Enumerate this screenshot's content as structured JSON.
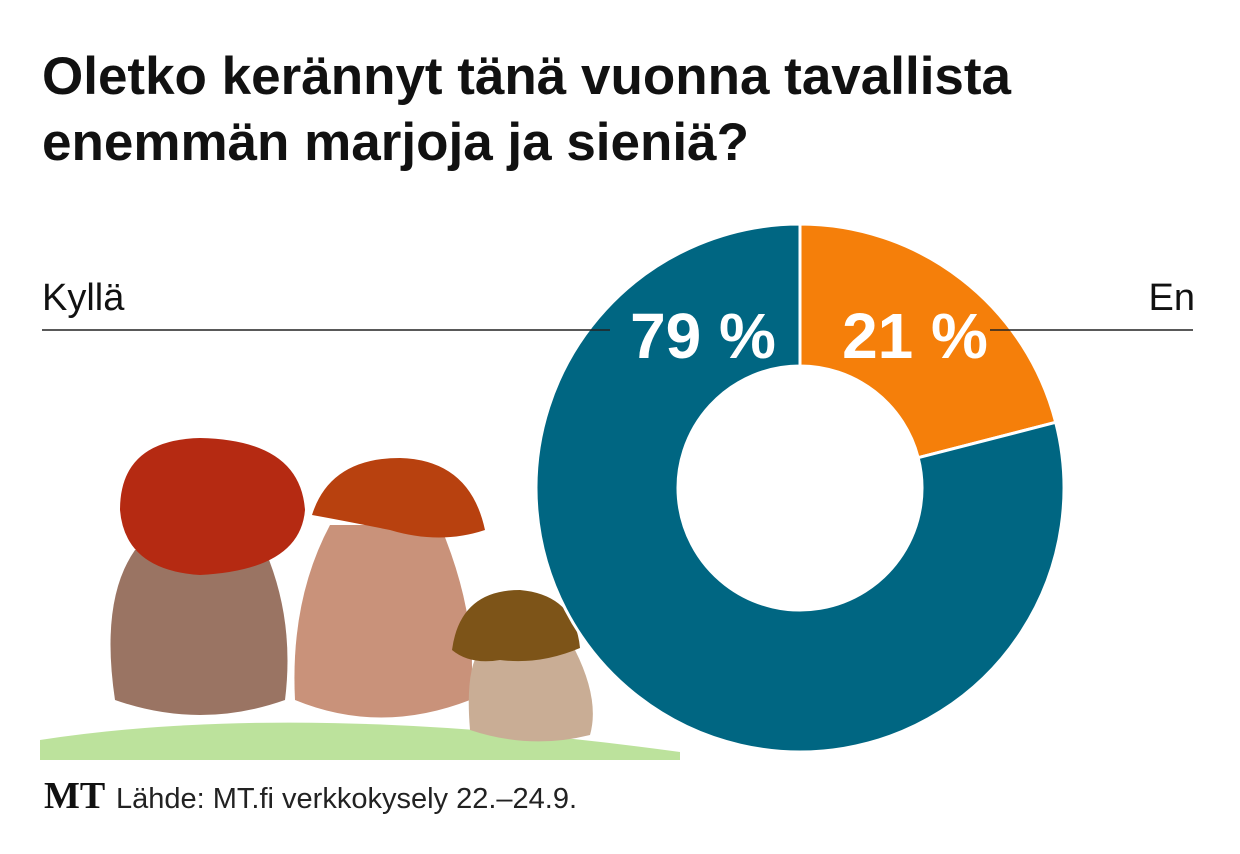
{
  "chart_data": {
    "type": "donut",
    "title": "Oletko kerännyt tänä vuonna tavallista enemmän marjoja ja sieniä?",
    "categories": [
      "Kyllä",
      "En"
    ],
    "values": [
      79,
      21
    ],
    "value_labels": [
      "79 %",
      "21 %"
    ],
    "colors": [
      "#006682",
      "#f57f0a"
    ],
    "logo": "MT",
    "source": "Lähde: MT.fi verkkokysely 22.–24.9."
  }
}
